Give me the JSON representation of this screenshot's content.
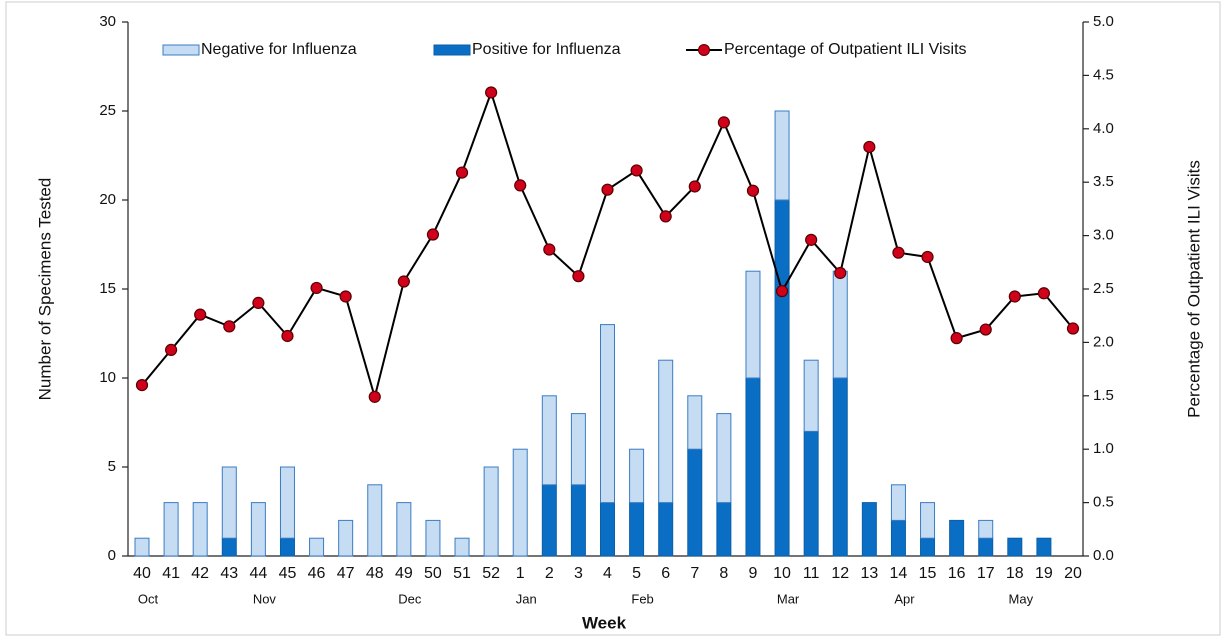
{
  "chart_data": {
    "type": "bar-line",
    "categories": [
      "40",
      "41",
      "42",
      "43",
      "44",
      "45",
      "46",
      "47",
      "48",
      "49",
      "50",
      "51",
      "52",
      "1",
      "2",
      "3",
      "4",
      "5",
      "6",
      "7",
      "8",
      "9",
      "10",
      "11",
      "12",
      "13",
      "14",
      "15",
      "16",
      "17",
      "18",
      "19",
      "20"
    ],
    "months": [
      "Oct",
      null,
      null,
      null,
      "Nov",
      null,
      null,
      null,
      null,
      "Dec",
      null,
      null,
      null,
      "Jan",
      null,
      null,
      null,
      "Feb",
      null,
      null,
      null,
      null,
      "Mar",
      null,
      null,
      null,
      "Apr",
      null,
      null,
      null,
      "May",
      null,
      null
    ],
    "xlabel": "Week",
    "ylabel": "Number of Specimens Tested",
    "y2label": "Percentage of Outpatient ILI Visits",
    "series": [
      {
        "name": "Negative for Influenza",
        "color": "#c6dcf2",
        "edge": "#3a7cc4",
        "kind": "bar",
        "values": [
          1,
          3,
          3,
          4,
          3,
          4,
          1,
          2,
          4,
          3,
          2,
          1,
          5,
          6,
          5,
          4,
          10,
          3,
          8,
          3,
          5,
          6,
          5,
          4,
          6,
          0,
          2,
          2,
          0,
          1,
          0,
          0,
          0
        ]
      },
      {
        "name": "Positive for Influenza",
        "color": "#0a6fc4",
        "edge": "#0a5fa8",
        "kind": "bar",
        "values": [
          0,
          0,
          0,
          1,
          0,
          1,
          0,
          0,
          0,
          0,
          0,
          0,
          0,
          0,
          4,
          4,
          3,
          3,
          3,
          6,
          3,
          10,
          20,
          7,
          10,
          3,
          2,
          1,
          2,
          1,
          1,
          1,
          0
        ]
      },
      {
        "name": "Percentage of Outpatient ILI Visits",
        "color": "#000000",
        "marker_color": "#d0021b",
        "kind": "line",
        "axis": "y2",
        "values": [
          1.6,
          1.93,
          2.26,
          2.15,
          2.37,
          2.06,
          2.51,
          2.43,
          1.49,
          2.57,
          3.01,
          3.59,
          4.34,
          3.47,
          2.87,
          2.62,
          3.43,
          3.61,
          3.18,
          3.46,
          4.06,
          3.42,
          2.48,
          2.96,
          2.65,
          3.83,
          2.84,
          2.8,
          2.04,
          2.12,
          2.43,
          2.46,
          2.13
        ]
      }
    ],
    "ylim": [
      0,
      30
    ],
    "yticks": [
      0,
      5,
      10,
      15,
      20,
      25,
      30
    ],
    "y2lim": [
      0,
      5
    ],
    "y2ticks": [
      {
        "value": 0,
        "label": "0.0"
      },
      0.5,
      {
        "value": 1,
        "label": "1.0"
      },
      1.5,
      {
        "value": 2,
        "label": "2.0"
      },
      2.5,
      {
        "value": 3,
        "label": "3.0"
      },
      3.5,
      {
        "value": 4,
        "label": "4.0"
      },
      4.5,
      {
        "value": 5,
        "label": "5.0"
      }
    ]
  }
}
